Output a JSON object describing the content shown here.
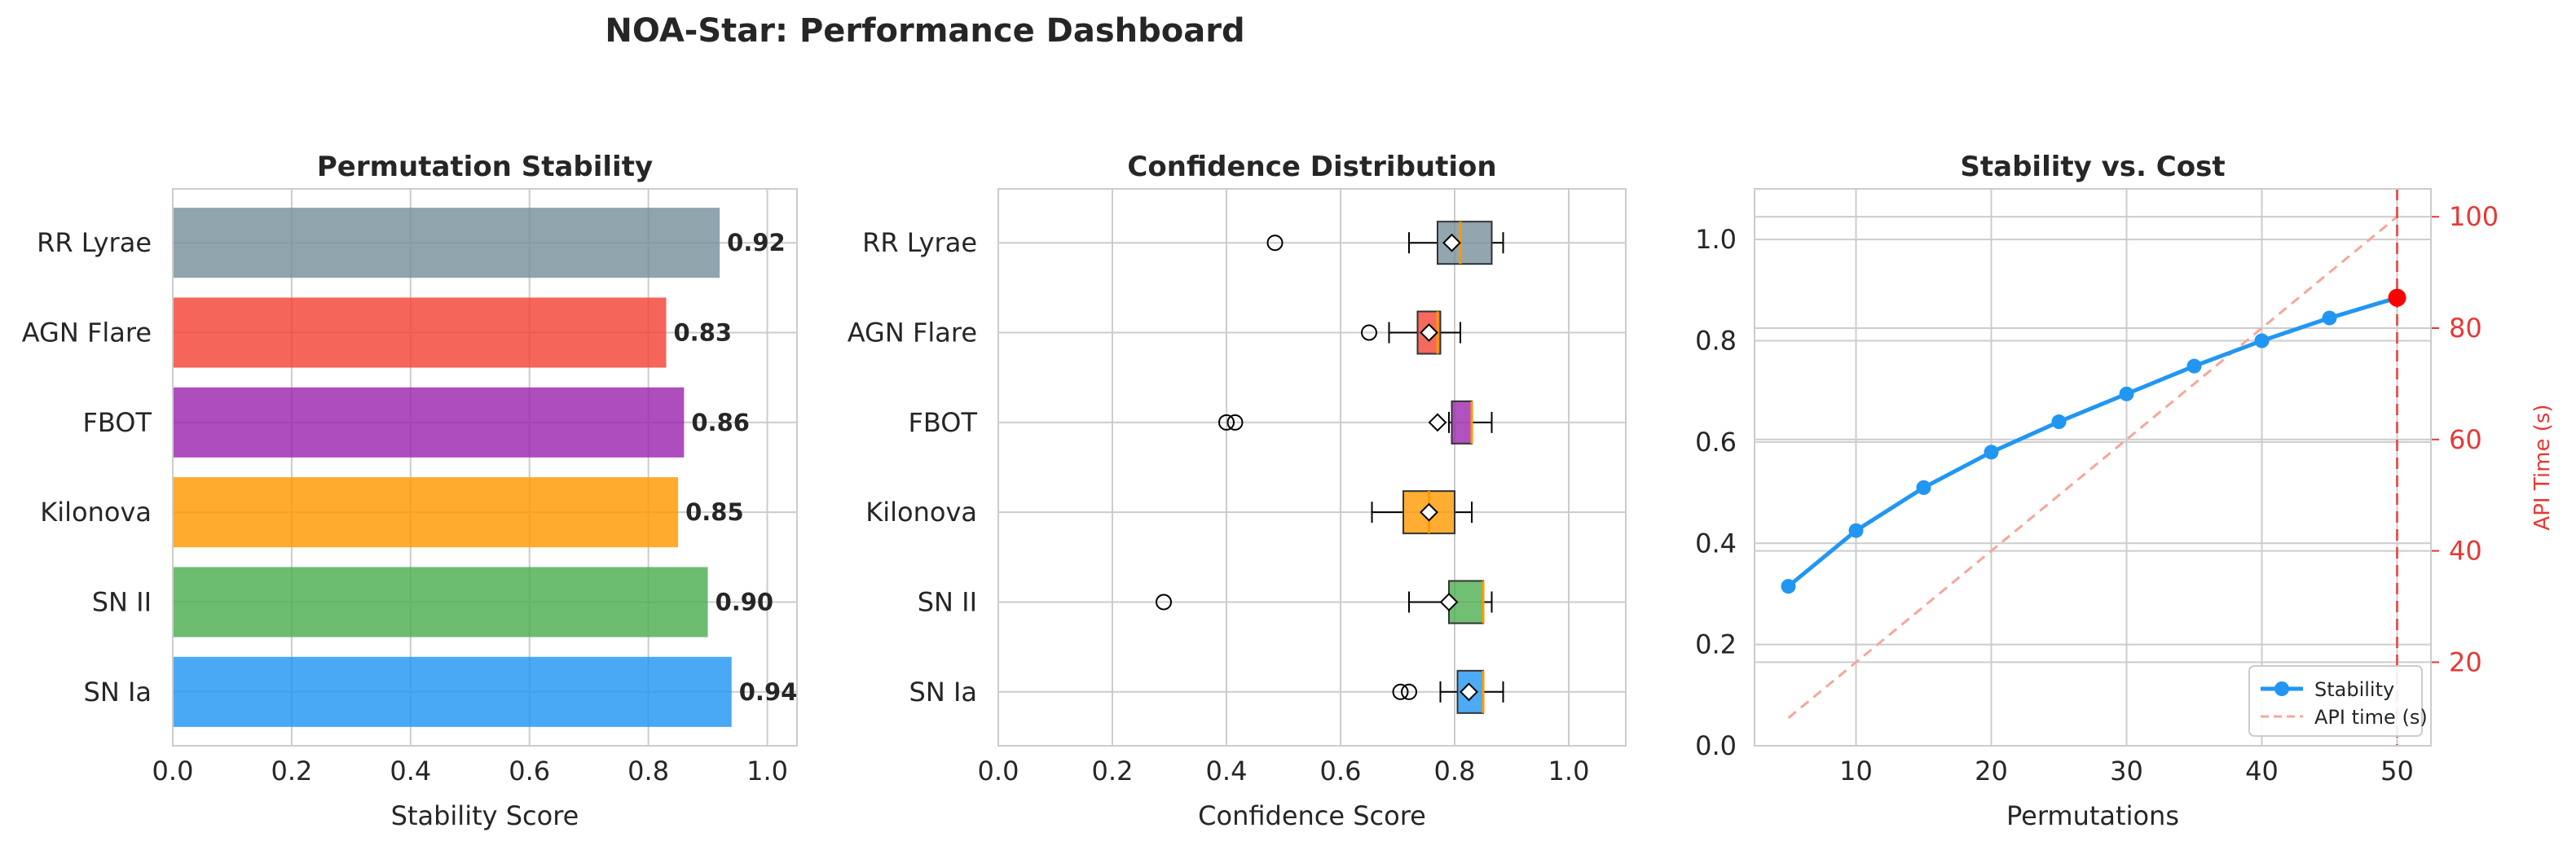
{
  "suptitle": "NOA-Star: Performance Dashboard",
  "chart_data": [
    {
      "type": "bar",
      "orientation": "horizontal",
      "title": "Permutation Stability",
      "xlabel": "Stability Score",
      "ylabel": "",
      "xlim": [
        0,
        1.05
      ],
      "xticks": [
        0.0,
        0.2,
        0.4,
        0.6,
        0.8,
        1.0
      ],
      "xtick_labels": [
        "0.0",
        "0.2",
        "0.4",
        "0.6",
        "0.8",
        "1.0"
      ],
      "grid": true,
      "categories": [
        "RR Lyrae",
        "AGN Flare",
        "FBOT",
        "Kilonova",
        "SN II",
        "SN Ia"
      ],
      "values": [
        0.92,
        0.83,
        0.86,
        0.85,
        0.9,
        0.94
      ],
      "value_labels": [
        "0.92",
        "0.83",
        "0.86",
        "0.85",
        "0.90",
        "0.94"
      ],
      "colors": [
        "#78909c",
        "#f44336",
        "#9c27b0",
        "#ff9800",
        "#4caf50",
        "#2196f3"
      ]
    },
    {
      "type": "box",
      "orientation": "horizontal",
      "title": "Confidence Distribution",
      "xlabel": "Confidence Score",
      "ylabel": "",
      "xlim": [
        0,
        1.1
      ],
      "xticks": [
        0.0,
        0.2,
        0.4,
        0.6,
        0.8,
        1.0
      ],
      "xtick_labels": [
        "0.0",
        "0.2",
        "0.4",
        "0.6",
        "0.8",
        "1.0"
      ],
      "grid": true,
      "categories": [
        "RR Lyrae",
        "AGN Flare",
        "FBOT",
        "Kilonova",
        "SN II",
        "SN Ia"
      ],
      "boxes": [
        {
          "whislo": 0.72,
          "q1": 0.77,
          "median": 0.81,
          "q3": 0.865,
          "whishi": 0.885,
          "mean": 0.795,
          "fliers": [
            0.485
          ],
          "color": "#78909c"
        },
        {
          "whislo": 0.685,
          "q1": 0.735,
          "median": 0.77,
          "q3": 0.775,
          "whishi": 0.81,
          "mean": 0.755,
          "fliers": [
            0.65
          ],
          "color": "#f44336"
        },
        {
          "whislo": 0.79,
          "q1": 0.795,
          "median": 0.83,
          "q3": 0.83,
          "whishi": 0.865,
          "mean": 0.77,
          "fliers": [
            0.4,
            0.415
          ],
          "color": "#9c27b0"
        },
        {
          "whislo": 0.655,
          "q1": 0.71,
          "median": 0.755,
          "q3": 0.8,
          "whishi": 0.83,
          "mean": 0.755,
          "fliers": [],
          "color": "#ff9800"
        },
        {
          "whislo": 0.72,
          "q1": 0.79,
          "median": 0.85,
          "q3": 0.85,
          "whishi": 0.865,
          "mean": 0.79,
          "fliers": [
            0.29
          ],
          "color": "#4caf50"
        },
        {
          "whislo": 0.775,
          "q1": 0.805,
          "median": 0.85,
          "q3": 0.85,
          "whishi": 0.885,
          "mean": 0.825,
          "fliers": [
            0.705,
            0.72
          ],
          "color": "#2196f3"
        }
      ]
    },
    {
      "type": "line",
      "title": "Stability vs. Cost",
      "xlabel": "Permutations",
      "ylabel": "",
      "y2label": "API Time (s)",
      "xlim": [
        2.5,
        52.5
      ],
      "ylim": [
        0,
        1.1
      ],
      "y2lim": [
        5,
        105
      ],
      "xticks": [
        10,
        20,
        30,
        40,
        50
      ],
      "xtick_labels": [
        "10",
        "20",
        "30",
        "40",
        "50"
      ],
      "yticks": [
        0.0,
        0.2,
        0.4,
        0.6,
        0.8,
        1.0
      ],
      "ytick_labels": [
        "0.0",
        "0.2",
        "0.4",
        "0.6",
        "0.8",
        "1.0"
      ],
      "y2ticks": [
        20,
        40,
        60,
        80,
        100
      ],
      "y2tick_labels": [
        "20",
        "40",
        "60",
        "80",
        "100"
      ],
      "grid": true,
      "legend_placement": "lower-right",
      "x": [
        5,
        10,
        15,
        20,
        25,
        30,
        35,
        40,
        45,
        50
      ],
      "series": [
        {
          "name": "Stability",
          "axis": "left",
          "values": [
            0.315,
            0.425,
            0.51,
            0.58,
            0.64,
            0.695,
            0.75,
            0.8,
            0.845,
            0.885
          ],
          "color": "#2196f3",
          "marker": "circle"
        },
        {
          "name": "API time (s)",
          "axis": "right",
          "values": [
            10,
            20,
            30,
            40,
            50,
            60,
            70,
            80,
            90,
            100
          ],
          "color": "#f4a79a",
          "style": "dashed"
        }
      ],
      "vline": {
        "x": 50,
        "color": "#e53935",
        "style": "dashed"
      },
      "highlight": {
        "x": 50,
        "y": 0.885,
        "color": "#ff0000"
      },
      "axis_color_right": "#e53935"
    }
  ]
}
